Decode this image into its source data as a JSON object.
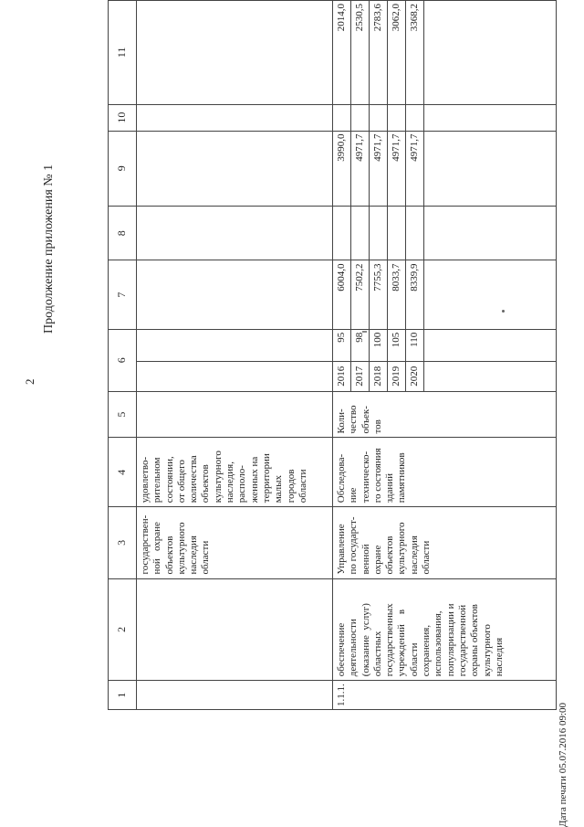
{
  "page_number": "2",
  "subtitle": "Продолжение приложения № 1",
  "print_date": "Дата печати 05.07.2016 09:00",
  "headers": [
    "1",
    "2",
    "3",
    "4",
    "5",
    "6",
    "7",
    "8",
    "9",
    "10",
    "11"
  ],
  "continuation_row": {
    "col3": "государствен-\nной   охране\nобъектов\nкультурного\nнаследия\nобласти",
    "col4": "удовлетво-\nрительном\nсостоянии,\nот общего\nколичества\nобъектов\nкультурного\nнаследия,\nрасполо-\nженных на\nтерритории\nмалых\nгородов\nобласти"
  },
  "item": {
    "number": "1.1.1.",
    "description": "обеспечение\nдеятельности\n(оказание  услуг)\nобластных\nгосударственных\nучреждений    в\nобласти\nсохранения,\nиспользования,\nпопуляризации и\nгосударственной\nохраны объектов\nкультурного\nнаследия",
    "executor": "Управление\nпо государст-\nвенной\nохране\nобъектов\nкультурного\nнаследия\nобласти",
    "indicator": "Обследова-\nние\nтехническо-\nго состояния\nзданий\nпамятников",
    "unit": "Коли-\nчество\nобъек-\nтов",
    "rows": [
      {
        "year": "2016",
        "value": "95",
        "c7": "6004,0",
        "c8": "",
        "c9": "3990,0",
        "c10": "",
        "c11": "2014,0"
      },
      {
        "year": "2017",
        "value": "98",
        "c7": "7502,2",
        "c8": "",
        "c9": "4971,7",
        "c10": "",
        "c11": "2530,5"
      },
      {
        "year": "2018",
        "value": "100",
        "c7": "7755,3",
        "c8": "",
        "c9": "4971,7",
        "c10": "",
        "c11": "2783,6"
      },
      {
        "year": "2019",
        "value": "105",
        "c7": "8033,7",
        "c8": "",
        "c9": "4971,7",
        "c10": "",
        "c11": "3062,0"
      },
      {
        "year": "2020",
        "value": "110",
        "c7": "8339,9",
        "c8": "",
        "c9": "4971,7",
        "c10": "",
        "c11": "3368,2"
      }
    ]
  }
}
